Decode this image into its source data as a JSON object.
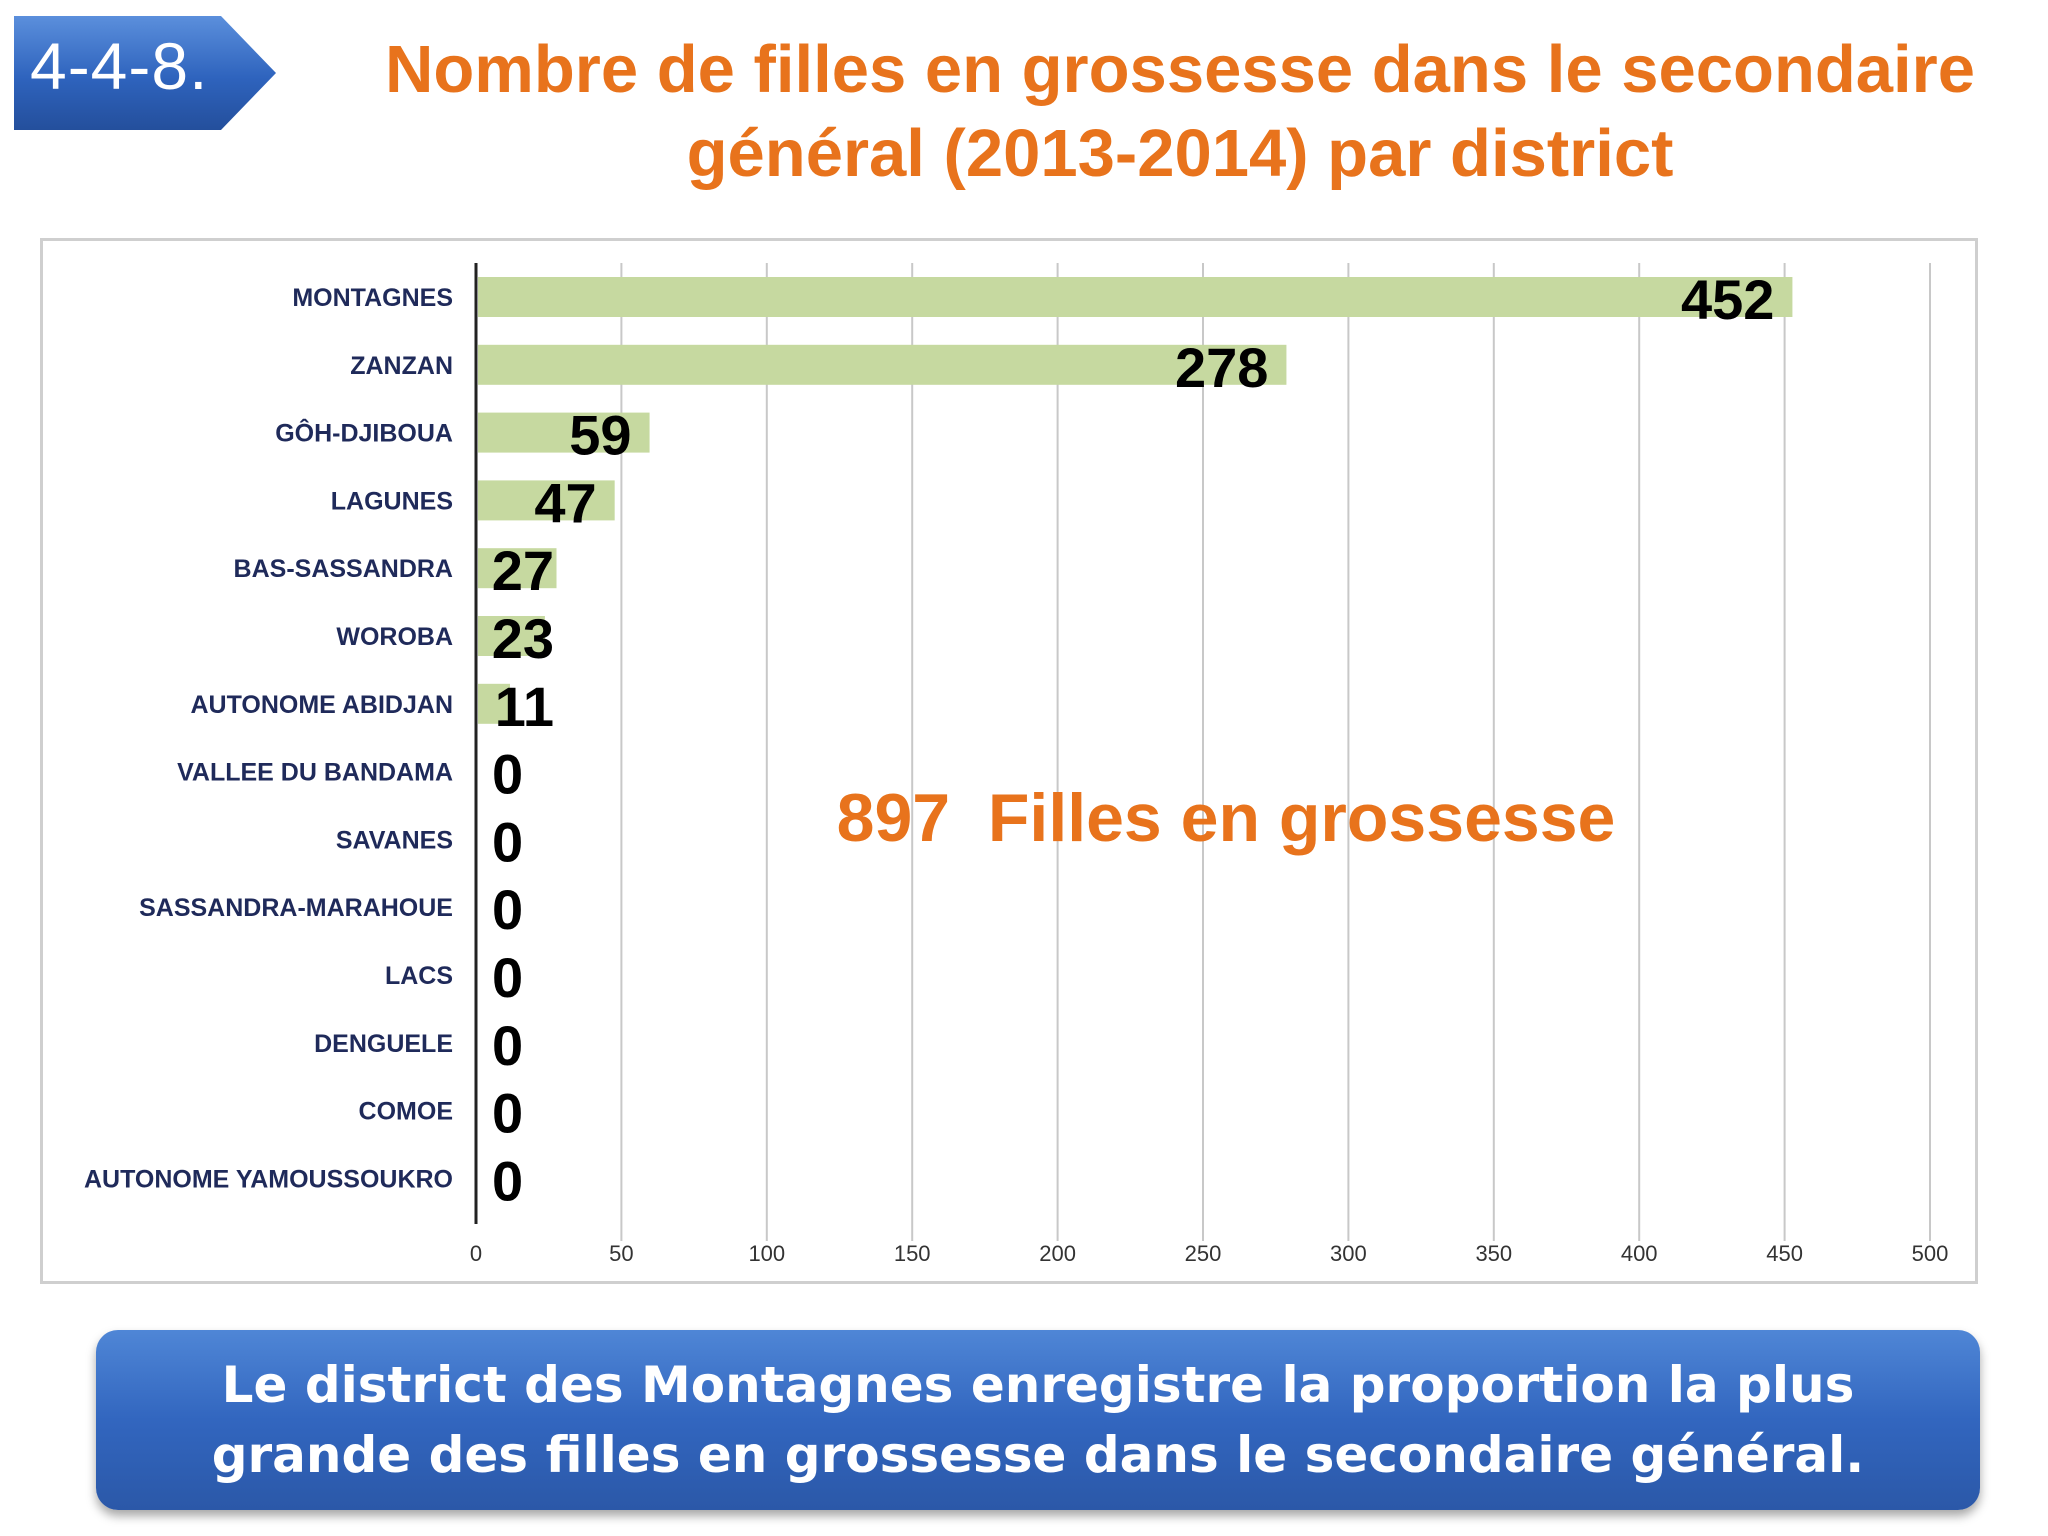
{
  "badge": {
    "label": "4-4-8."
  },
  "title": "Nombre de filles en grossesse dans le secondaire général (2013-2014) par district",
  "footer": {
    "text": "Le district des Montagnes enregistre la proportion la plus grande des filles en grossesse dans le secondaire général."
  },
  "colors": {
    "bar": "#c6d9a0",
    "title": "#e8731c",
    "category_label": "#1f2a5a",
    "annotation": "#e8731c",
    "footer_bg": "#3266bf"
  },
  "chart_data": {
    "type": "bar",
    "orientation": "horizontal",
    "categories": [
      "MONTAGNES",
      "ZANZAN",
      "GÔH-DJIBOUA",
      "LAGUNES",
      "BAS-SASSANDRA",
      "WOROBA",
      "AUTONOME ABIDJAN",
      "VALLEE DU BANDAMA",
      "SAVANES",
      "SASSANDRA-MARAHOUE",
      "LACS",
      "DENGUELE",
      "COMOE",
      "AUTONOME YAMOUSSOUKRO"
    ],
    "values": [
      452,
      278,
      59,
      47,
      27,
      23,
      11,
      0,
      0,
      0,
      0,
      0,
      0,
      0
    ],
    "data_labels": [
      "452",
      "278",
      "59",
      "47",
      "27",
      "23",
      "11",
      "0",
      "0",
      "0",
      "0",
      "0",
      "0",
      "0"
    ],
    "xlim": [
      0,
      500
    ],
    "xticks": [
      0,
      50,
      100,
      150,
      200,
      250,
      300,
      350,
      400,
      450,
      500
    ],
    "xtick_labels": [
      "0",
      "50",
      "100",
      "150",
      "200",
      "250",
      "300",
      "350",
      "400",
      "450",
      "500"
    ],
    "grid": "vertical",
    "legend": "none",
    "annotation": "897  Filles en grossesse"
  }
}
